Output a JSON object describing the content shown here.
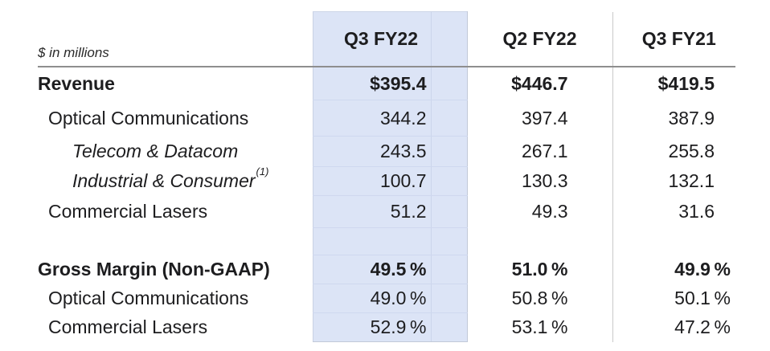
{
  "table": {
    "units_note": "$ in millions",
    "columns": [
      {
        "id": "q3fy22",
        "label": "Q3 FY22",
        "highlighted": true,
        "highlight_color": "#dce4f6"
      },
      {
        "id": "q2fy22",
        "label": "Q2 FY22",
        "highlighted": false
      },
      {
        "id": "q3fy21",
        "label": "Q3 FY21",
        "highlighted": false
      }
    ],
    "rows": [
      {
        "label": "Revenue",
        "section": "revenue",
        "emphasis": "bold",
        "indent": 0,
        "values": [
          "$395.4",
          "$446.7",
          "$419.5"
        ]
      },
      {
        "label": "Optical Communications",
        "section": "revenue",
        "emphasis": "normal",
        "indent": 1,
        "values": [
          "344.2",
          "397.4",
          "387.9"
        ]
      },
      {
        "label": "Telecom & Datacom",
        "section": "revenue",
        "emphasis": "italic",
        "indent": 2,
        "values": [
          "243.5",
          "267.1",
          "255.8"
        ]
      },
      {
        "label": "Industrial & Consumer",
        "sup": "(1)",
        "section": "revenue",
        "emphasis": "italic",
        "indent": 2,
        "values": [
          "100.7",
          "130.3",
          "132.1"
        ]
      },
      {
        "label": "Commercial Lasers",
        "section": "revenue",
        "emphasis": "normal",
        "indent": 1,
        "values": [
          "51.2",
          "49.3",
          "31.6"
        ]
      },
      {
        "label": "",
        "spacer": true,
        "values": [
          "",
          "",
          ""
        ]
      },
      {
        "label": "Gross Margin (Non-GAAP)",
        "section": "gross_margin",
        "emphasis": "bold",
        "indent": 0,
        "values": [
          "49.5 %",
          "51.0 %",
          "49.9 %"
        ]
      },
      {
        "label": "Optical Communications",
        "section": "gross_margin",
        "emphasis": "normal",
        "indent": 1,
        "values": [
          "49.0 %",
          "50.8 %",
          "50.1 %"
        ]
      },
      {
        "label": "Commercial Lasers",
        "section": "gross_margin",
        "emphasis": "normal",
        "indent": 1,
        "values": [
          "52.9 %",
          "53.1 %",
          "47.2 %"
        ]
      }
    ]
  },
  "colors": {
    "highlight_column": "#dce4f6",
    "header_rule": "#8e8e8e",
    "column_rule": "#c9c9c9",
    "text": "#1d1d1f"
  }
}
